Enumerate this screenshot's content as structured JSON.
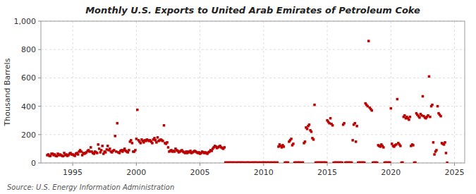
{
  "chart_data": {
    "type": "scatter",
    "title": "Monthly U.S. Exports to United Arab Emirates of Petroleum Coke",
    "y_label": "Thousand Barrels",
    "annotations": [
      "Source: U.S. Energy Information Administration"
    ],
    "color": "#BB0000",
    "marker": "square",
    "grid": true,
    "xlim": [
      1992.5,
      2025.8
    ],
    "xticks": [
      1995,
      2000,
      2005,
      2010,
      2015,
      2020,
      2025
    ],
    "ylim": [
      0,
      1000
    ],
    "yticks": [
      0,
      200,
      400,
      600,
      800,
      {
        "value": 1000,
        "label": "1,000"
      }
    ],
    "x": [
      1993.0,
      1993.08,
      1993.17,
      1993.25,
      1993.33,
      1993.42,
      1993.5,
      1993.58,
      1993.67,
      1993.75,
      1993.83,
      1993.92,
      1994.0,
      1994.08,
      1994.17,
      1994.25,
      1994.33,
      1994.42,
      1994.5,
      1994.58,
      1994.67,
      1994.75,
      1994.83,
      1994.92,
      1995.0,
      1995.08,
      1995.17,
      1995.25,
      1995.33,
      1995.42,
      1995.5,
      1995.58,
      1995.67,
      1995.75,
      1995.83,
      1995.92,
      1996.0,
      1996.08,
      1996.17,
      1996.25,
      1996.33,
      1996.42,
      1996.5,
      1996.58,
      1996.67,
      1996.75,
      1996.83,
      1996.92,
      1997.0,
      1997.08,
      1997.17,
      1997.25,
      1997.33,
      1997.42,
      1997.5,
      1997.58,
      1997.67,
      1997.75,
      1997.83,
      1997.92,
      1998.0,
      1998.08,
      1998.17,
      1998.25,
      1998.33,
      1998.42,
      1998.5,
      1998.58,
      1998.67,
      1998.75,
      1998.83,
      1998.92,
      1999.0,
      1999.08,
      1999.17,
      1999.25,
      1999.33,
      1999.42,
      1999.5,
      1999.58,
      1999.67,
      1999.75,
      1999.83,
      1999.92,
      2000.0,
      2000.08,
      2000.17,
      2000.25,
      2000.33,
      2000.42,
      2000.5,
      2000.58,
      2000.67,
      2000.75,
      2000.83,
      2000.92,
      2001.0,
      2001.08,
      2001.17,
      2001.25,
      2001.33,
      2001.42,
      2001.5,
      2001.58,
      2001.67,
      2001.75,
      2001.83,
      2001.92,
      2002.0,
      2002.08,
      2002.17,
      2002.25,
      2002.33,
      2002.42,
      2002.5,
      2002.58,
      2002.67,
      2002.75,
      2002.83,
      2002.92,
      2003.0,
      2003.08,
      2003.17,
      2003.25,
      2003.33,
      2003.42,
      2003.5,
      2003.58,
      2003.67,
      2003.75,
      2003.83,
      2003.92,
      2004.0,
      2004.08,
      2004.17,
      2004.25,
      2004.33,
      2004.42,
      2004.5,
      2004.58,
      2004.67,
      2004.75,
      2004.83,
      2004.92,
      2005.0,
      2005.08,
      2005.17,
      2005.25,
      2005.33,
      2005.42,
      2005.5,
      2005.58,
      2005.67,
      2005.75,
      2005.83,
      2005.92,
      2006.0,
      2006.08,
      2006.17,
      2006.25,
      2006.33,
      2006.42,
      2006.5,
      2006.58,
      2006.67,
      2006.75,
      2006.83,
      2006.92,
      2007.0,
      2007.08,
      2007.17,
      2007.25,
      2007.33,
      2007.42,
      2007.5,
      2007.58,
      2007.67,
      2007.75,
      2007.83,
      2007.92,
      2008.0,
      2008.08,
      2008.17,
      2008.25,
      2008.33,
      2008.42,
      2008.5,
      2008.58,
      2008.67,
      2008.75,
      2008.83,
      2008.92,
      2009.0,
      2009.08,
      2009.17,
      2009.25,
      2009.33,
      2009.42,
      2009.5,
      2009.58,
      2009.67,
      2009.75,
      2009.83,
      2009.92,
      2010.0,
      2010.08,
      2010.17,
      2010.25,
      2010.33,
      2010.42,
      2010.5,
      2010.58,
      2010.67,
      2010.75,
      2010.83,
      2010.92,
      2011.0,
      2011.08,
      2011.17,
      2011.25,
      2011.33,
      2011.42,
      2011.5,
      2011.58,
      2011.67,
      2011.75,
      2011.83,
      2011.92,
      2012.0,
      2012.08,
      2012.17,
      2012.25,
      2012.33,
      2012.42,
      2012.5,
      2012.58,
      2012.67,
      2012.75,
      2012.83,
      2012.92,
      2013.0,
      2013.08,
      2013.17,
      2013.25,
      2013.33,
      2013.42,
      2013.5,
      2013.58,
      2013.67,
      2013.75,
      2013.83,
      2013.92,
      2014.0,
      2014.08,
      2014.17,
      2014.25,
      2014.33,
      2014.42,
      2014.5,
      2014.58,
      2014.67,
      2014.75,
      2014.83,
      2014.92,
      2015.0,
      2015.08,
      2015.17,
      2015.25,
      2015.33,
      2015.42,
      2015.5,
      2015.58,
      2015.67,
      2015.75,
      2015.83,
      2015.92,
      2016.0,
      2016.08,
      2016.17,
      2016.25,
      2016.33,
      2016.42,
      2016.5,
      2016.58,
      2016.67,
      2016.75,
      2016.83,
      2016.92,
      2017.0,
      2017.08,
      2017.17,
      2017.25,
      2017.33,
      2017.42,
      2017.5,
      2017.58,
      2017.67,
      2017.75,
      2017.83,
      2017.92,
      2018.0,
      2018.08,
      2018.17,
      2018.25,
      2018.33,
      2018.42,
      2018.5,
      2018.58,
      2018.67,
      2018.75,
      2018.83,
      2018.92,
      2019.0,
      2019.08,
      2019.17,
      2019.25,
      2019.33,
      2019.42,
      2019.5,
      2019.58,
      2019.67,
      2019.75,
      2019.83,
      2019.92,
      2020.0,
      2020.08,
      2020.17,
      2020.25,
      2020.33,
      2020.42,
      2020.5,
      2020.58,
      2020.67,
      2020.75,
      2020.83,
      2020.92,
      2021.0,
      2021.08,
      2021.17,
      2021.25,
      2021.33,
      2021.42,
      2021.5,
      2021.58,
      2021.67,
      2021.75,
      2021.83,
      2021.92,
      2022.0,
      2022.08,
      2022.17,
      2022.25,
      2022.33,
      2022.42,
      2022.5,
      2022.58,
      2022.67,
      2022.75,
      2022.83,
      2022.92,
      2023.0,
      2023.08,
      2023.17,
      2023.25,
      2023.33,
      2023.42,
      2023.5,
      2023.58,
      2023.67,
      2023.75,
      2023.83,
      2023.92,
      2024.0,
      2024.08,
      2024.17,
      2024.25,
      2024.33,
      2024.42
    ],
    "values": [
      55,
      60,
      50,
      50,
      65,
      65,
      55,
      60,
      50,
      48,
      65,
      55,
      60,
      55,
      50,
      48,
      70,
      55,
      60,
      50,
      55,
      65,
      70,
      60,
      60,
      55,
      50,
      65,
      70,
      60,
      80,
      90,
      80,
      55,
      70,
      65,
      70,
      75,
      85,
      90,
      80,
      110,
      80,
      70,
      65,
      80,
      75,
      70,
      130,
      100,
      75,
      90,
      120,
      65,
      80,
      75,
      95,
      120,
      90,
      100,
      80,
      75,
      85,
      90,
      190,
      80,
      280,
      75,
      70,
      85,
      90,
      80,
      90,
      100,
      85,
      80,
      75,
      90,
      150,
      160,
      140,
      80,
      80,
      90,
      170,
      375,
      160,
      150,
      140,
      165,
      155,
      145,
      160,
      155,
      165,
      160,
      155,
      160,
      150,
      140,
      165,
      175,
      160,
      145,
      180,
      155,
      160,
      165,
      160,
      155,
      265,
      140,
      135,
      145,
      110,
      80,
      85,
      90,
      80,
      85,
      80,
      100,
      90,
      85,
      75,
      80,
      85,
      90,
      80,
      75,
      70,
      80,
      70,
      80,
      75,
      85,
      70,
      75,
      80,
      85,
      80,
      75,
      70,
      75,
      65,
      70,
      80,
      75,
      70,
      75,
      70,
      65,
      75,
      80,
      90,
      85,
      100,
      110,
      120,
      115,
      105,
      110,
      115,
      120,
      110,
      105,
      100,
      110,
      3,
      2,
      3,
      2,
      3,
      2,
      3,
      2,
      3,
      2,
      2,
      3,
      2,
      3,
      2,
      3,
      2,
      3,
      2,
      2,
      3,
      2,
      3,
      2,
      2,
      3,
      2,
      3,
      2,
      3,
      2,
      2,
      3,
      2,
      2,
      3,
      2,
      3,
      2,
      2,
      3,
      2,
      2,
      3,
      2,
      2,
      3,
      2,
      2,
      3,
      115,
      130,
      120,
      110,
      125,
      115,
      2,
      3,
      2,
      3,
      150,
      160,
      170,
      125,
      135,
      2,
      3,
      2,
      3,
      2,
      3,
      2,
      2,
      3,
      140,
      150,
      250,
      240,
      260,
      270,
      230,
      220,
      175,
      165,
      410,
      2,
      3,
      2,
      3,
      2,
      3,
      2,
      3,
      2,
      3,
      2,
      300,
      290,
      280,
      315,
      275,
      265,
      2,
      3,
      2,
      3,
      2,
      3,
      2,
      3,
      2,
      270,
      280,
      2,
      3,
      2,
      3,
      2,
      3,
      2,
      160,
      270,
      280,
      150,
      260,
      2,
      3,
      2,
      3,
      2,
      3,
      2,
      420,
      410,
      400,
      860,
      390,
      380,
      370,
      2,
      3,
      2,
      3,
      2,
      125,
      120,
      115,
      130,
      120,
      110,
      2,
      3,
      2,
      3,
      2,
      3,
      385,
      135,
      120,
      115,
      125,
      130,
      450,
      140,
      130,
      120,
      2,
      3,
      325,
      335,
      315,
      325,
      315,
      305,
      325,
      120,
      130,
      125,
      2,
      3,
      350,
      340,
      330,
      320,
      345,
      335,
      470,
      330,
      320,
      315,
      325,
      335,
      610,
      325,
      400,
      410,
      145,
      60,
      80,
      90,
      400,
      350,
      340,
      330,
      140,
      135,
      130,
      145,
      70,
      2
    ]
  }
}
